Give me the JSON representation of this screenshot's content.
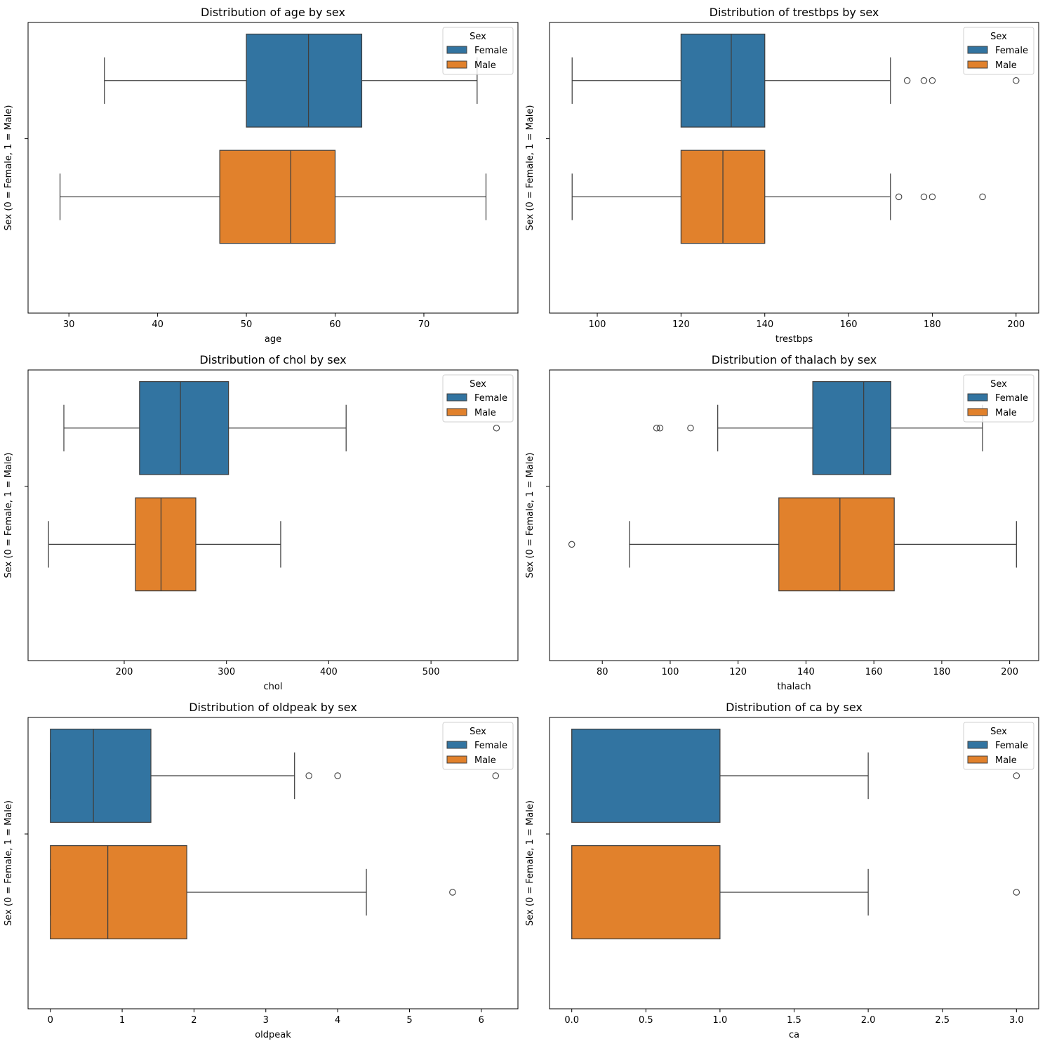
{
  "legend": {
    "title": "Sex",
    "entries": [
      {
        "label": "Female",
        "color": "#3274a1"
      },
      {
        "label": "Male",
        "color": "#e1812c"
      }
    ]
  },
  "chart_data": [
    {
      "type": "boxplot",
      "orientation": "horizontal",
      "title": "Distribution of age by sex",
      "xlabel": "age",
      "ylabel": "Sex (0 = Female, 1 = Male)",
      "xlim": [
        25.4,
        80.6
      ],
      "xticks": [
        30,
        40,
        50,
        60,
        70
      ],
      "xtick_labels": [
        "30",
        "40",
        "50",
        "60",
        "70"
      ],
      "grid": false,
      "legend_position": "top-right",
      "series": [
        {
          "name": "Female",
          "whisker_low": 34,
          "q1": 50,
          "median": 57,
          "q3": 63,
          "whisker_high": 76,
          "outliers": []
        },
        {
          "name": "Male",
          "whisker_low": 29,
          "q1": 47,
          "median": 55,
          "q3": 60,
          "whisker_high": 77,
          "outliers": []
        }
      ]
    },
    {
      "type": "boxplot",
      "orientation": "horizontal",
      "title": "Distribution of trestbps by sex",
      "xlabel": "trestbps",
      "ylabel": "Sex (0 = Female, 1 = Male)",
      "xlim": [
        88.6,
        205.4
      ],
      "xticks": [
        100,
        120,
        140,
        160,
        180,
        200
      ],
      "xtick_labels": [
        "100",
        "120",
        "140",
        "160",
        "180",
        "200"
      ],
      "grid": false,
      "legend_position": "top-right",
      "series": [
        {
          "name": "Female",
          "whisker_low": 94,
          "q1": 120,
          "median": 132,
          "q3": 140,
          "whisker_high": 170,
          "outliers": [
            174,
            178,
            180,
            200
          ]
        },
        {
          "name": "Male",
          "whisker_low": 94,
          "q1": 120,
          "median": 130,
          "q3": 140,
          "whisker_high": 170,
          "outliers": [
            172,
            178,
            180,
            192
          ]
        }
      ]
    },
    {
      "type": "boxplot",
      "orientation": "horizontal",
      "title": "Distribution of chol by sex",
      "xlabel": "chol",
      "ylabel": "Sex (0 = Female, 1 = Male)",
      "xlim": [
        106,
        585
      ],
      "xticks": [
        200,
        300,
        400,
        500
      ],
      "xtick_labels": [
        "200",
        "300",
        "400",
        "500"
      ],
      "grid": false,
      "legend_position": "top-right",
      "series": [
        {
          "name": "Female",
          "whisker_low": 141,
          "q1": 215,
          "median": 255,
          "q3": 302,
          "whisker_high": 417,
          "outliers": [
            564
          ]
        },
        {
          "name": "Male",
          "whisker_low": 126,
          "q1": 211,
          "median": 236,
          "q3": 270,
          "whisker_high": 353,
          "outliers": []
        }
      ]
    },
    {
      "type": "boxplot",
      "orientation": "horizontal",
      "title": "Distribution of thalach by sex",
      "xlabel": "thalach",
      "ylabel": "Sex (0 = Female, 1 = Male)",
      "xlim": [
        64.45,
        208.55
      ],
      "xticks": [
        80,
        100,
        120,
        140,
        160,
        180,
        200
      ],
      "xtick_labels": [
        "80",
        "100",
        "120",
        "140",
        "160",
        "180",
        "200"
      ],
      "grid": false,
      "legend_position": "top-right",
      "series": [
        {
          "name": "Female",
          "whisker_low": 114,
          "q1": 142,
          "median": 157,
          "q3": 165,
          "whisker_high": 192,
          "outliers": [
            96,
            97,
            106
          ]
        },
        {
          "name": "Male",
          "whisker_low": 88,
          "q1": 132,
          "median": 150,
          "q3": 166,
          "whisker_high": 202,
          "outliers": [
            71
          ]
        }
      ]
    },
    {
      "type": "boxplot",
      "orientation": "horizontal",
      "title": "Distribution of oldpeak by sex",
      "xlabel": "oldpeak",
      "ylabel": "Sex (0 = Female, 1 = Male)",
      "xlim": [
        -0.31,
        6.51
      ],
      "xticks": [
        0,
        1,
        2,
        3,
        4,
        5,
        6
      ],
      "xtick_labels": [
        "0",
        "1",
        "2",
        "3",
        "4",
        "5",
        "6"
      ],
      "grid": false,
      "legend_position": "top-right",
      "series": [
        {
          "name": "Female",
          "whisker_low": 0,
          "q1": 0,
          "median": 0.6,
          "q3": 1.4,
          "whisker_high": 3.4,
          "outliers": [
            3.6,
            4.0,
            6.2
          ]
        },
        {
          "name": "Male",
          "whisker_low": 0,
          "q1": 0,
          "median": 0.8,
          "q3": 1.9,
          "whisker_high": 4.4,
          "outliers": [
            5.6
          ]
        }
      ]
    },
    {
      "type": "boxplot",
      "orientation": "horizontal",
      "title": "Distribution of ca by sex",
      "xlabel": "ca",
      "ylabel": "Sex (0 = Female, 1 = Male)",
      "xlim": [
        -0.15,
        3.15
      ],
      "xticks": [
        0,
        0.5,
        1,
        1.5,
        2,
        2.5,
        3
      ],
      "xtick_labels": [
        "0.0",
        "0.5",
        "1.0",
        "1.5",
        "2.0",
        "2.5",
        "3.0"
      ],
      "grid": false,
      "legend_position": "top-right",
      "series": [
        {
          "name": "Female",
          "whisker_low": 0,
          "q1": 0,
          "median": 0,
          "q3": 1,
          "whisker_high": 2,
          "outliers": [
            3
          ]
        },
        {
          "name": "Male",
          "whisker_low": 0,
          "q1": 0,
          "median": 0,
          "q3": 1,
          "whisker_high": 2,
          "outliers": [
            3
          ]
        }
      ]
    }
  ]
}
